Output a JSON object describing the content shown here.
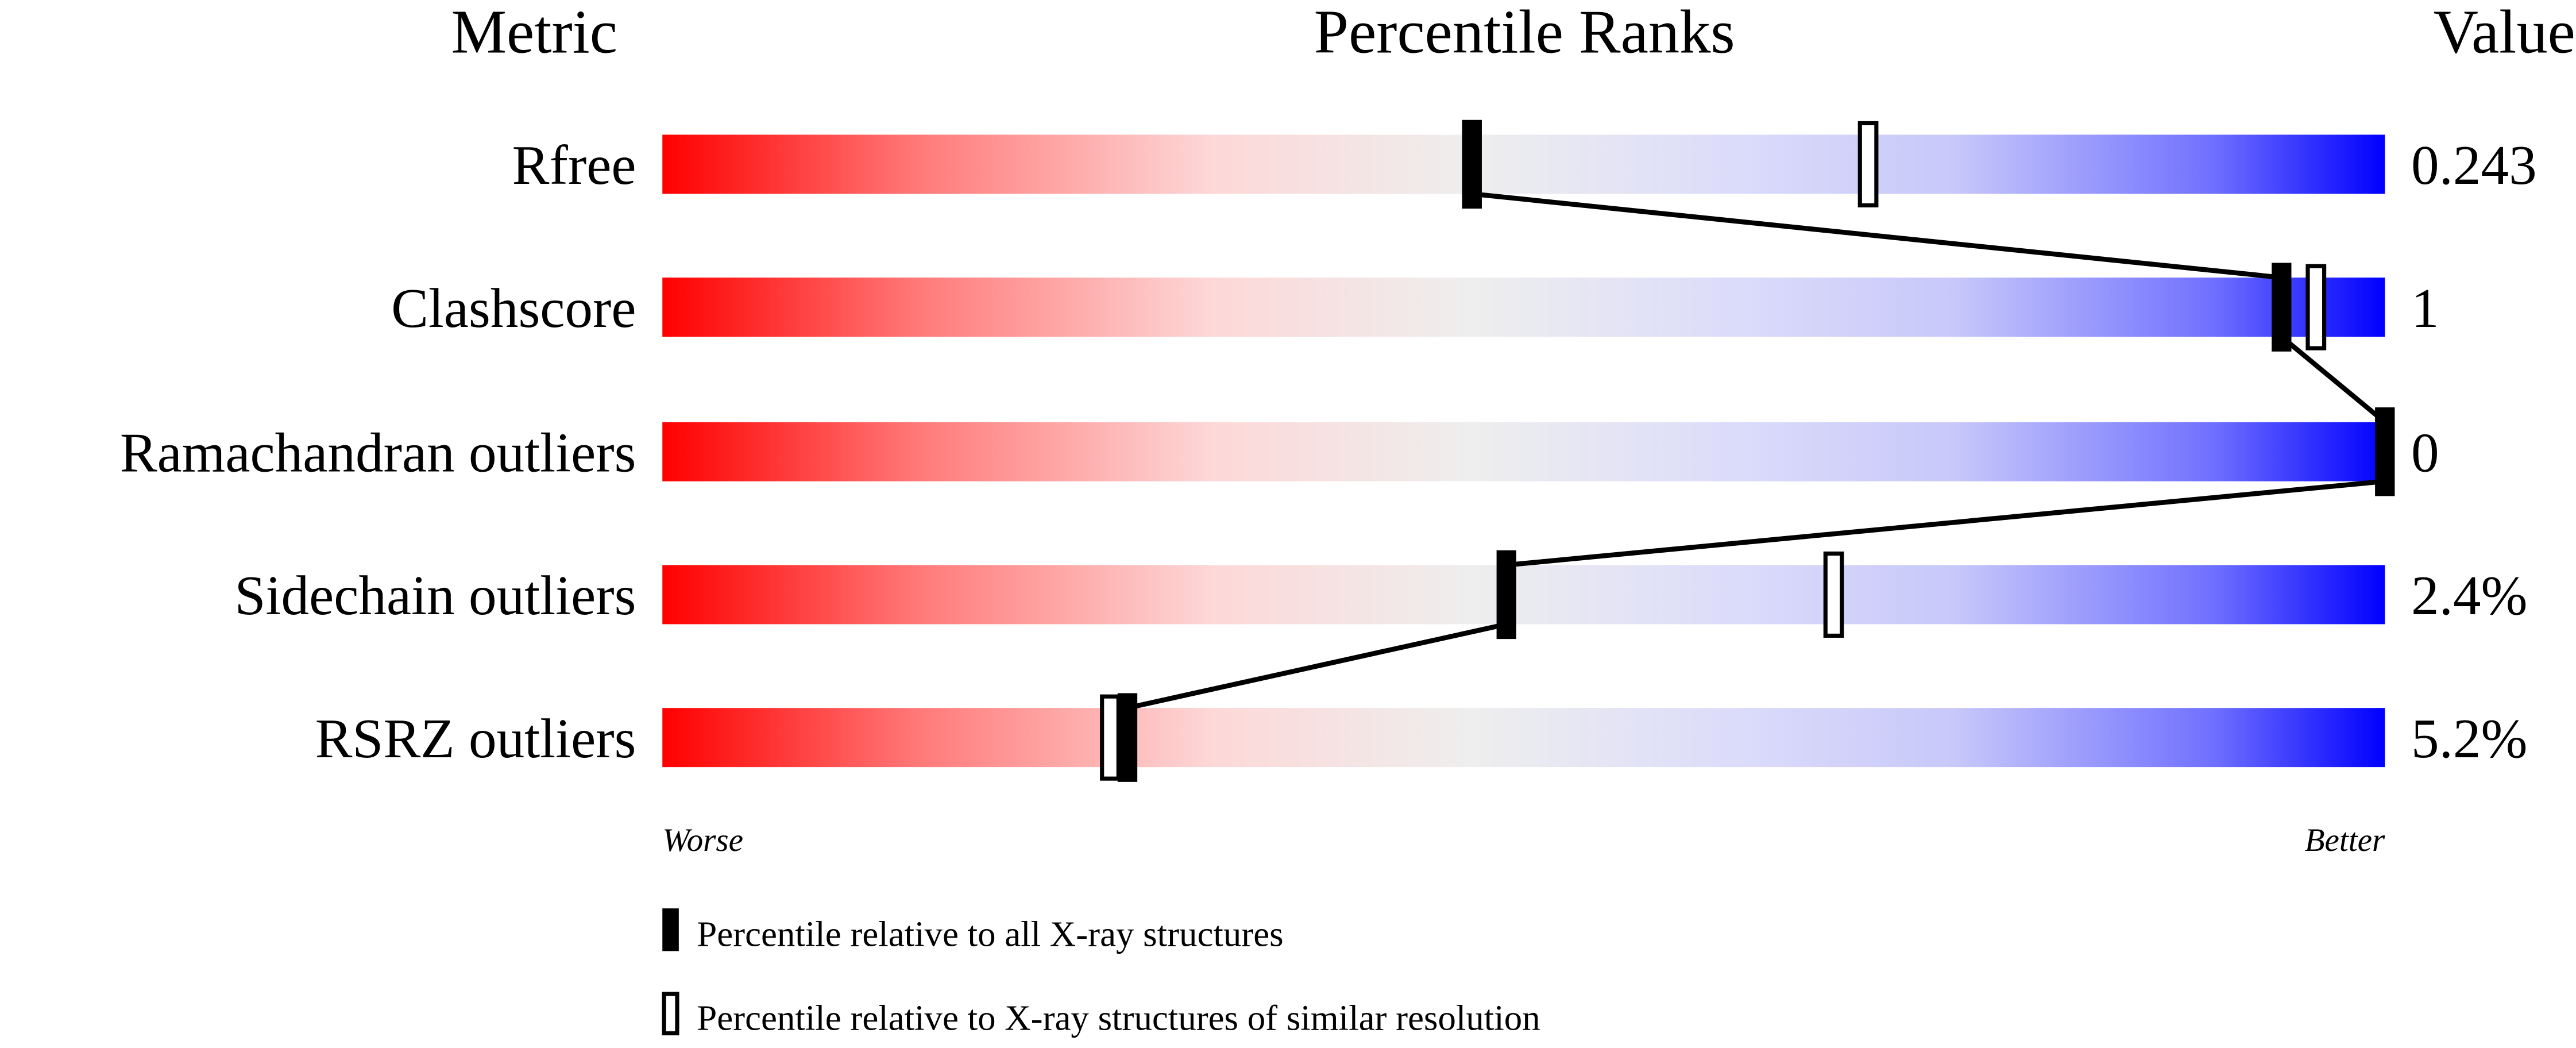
{
  "chart_data": {
    "type": "bar",
    "headers": {
      "metric": "Metric",
      "ranks": "Percentile Ranks",
      "value": "Value"
    },
    "xlim": [
      0,
      100
    ],
    "metrics": [
      {
        "name": "Rfree",
        "value": "0.243",
        "percentile_all": 47,
        "percentile_similar": 70
      },
      {
        "name": "Clashscore",
        "value": "1",
        "percentile_all": 94,
        "percentile_similar": 96
      },
      {
        "name": "Ramachandran outliers",
        "value": "0",
        "percentile_all": 100,
        "percentile_similar": 100
      },
      {
        "name": "Sidechain outliers",
        "value": "2.4%",
        "percentile_all": 49,
        "percentile_similar": 68
      },
      {
        "name": "RSRZ outliers",
        "value": "5.2%",
        "percentile_all": 27,
        "percentile_similar": 26
      }
    ],
    "axis": {
      "left": "Worse",
      "right": "Better"
    },
    "legend": [
      {
        "symbol": "filled",
        "label": "Percentile relative to all X-ray structures"
      },
      {
        "symbol": "open",
        "label": "Percentile relative to X-ray structures of similar resolution"
      }
    ],
    "colors": {
      "worse": "#ff0000",
      "middle": "#eeeeee",
      "better": "#0000ff"
    }
  }
}
